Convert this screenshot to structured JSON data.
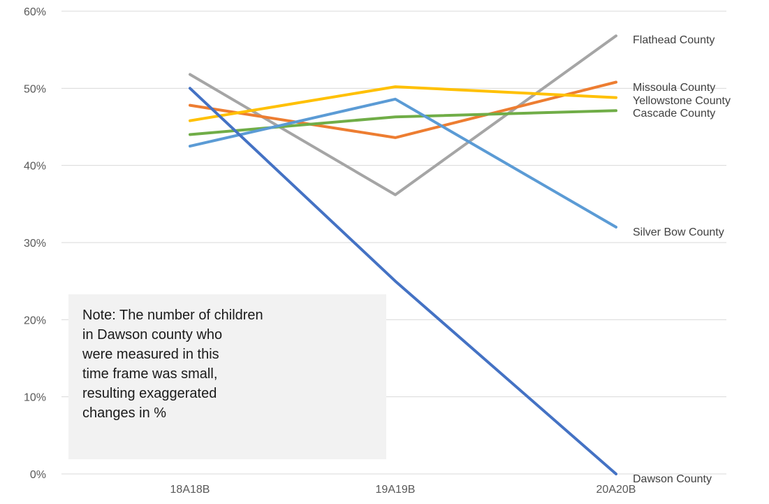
{
  "chart_data": {
    "type": "line",
    "categories": [
      "18A18B",
      "19A19B",
      "20A20B"
    ],
    "ylim": [
      0,
      60
    ],
    "yticks": [
      0,
      10,
      20,
      30,
      40,
      50,
      60
    ],
    "ytick_labels": [
      "0%",
      "10%",
      "20%",
      "30%",
      "40%",
      "50%",
      "60%"
    ],
    "grid": true,
    "series": [
      {
        "name": "Flathead County",
        "values": [
          51.8,
          36.2,
          56.8
        ],
        "color": "#a5a5a5"
      },
      {
        "name": "Missoula County",
        "values": [
          47.8,
          43.6,
          50.8
        ],
        "color": "#ed7d31"
      },
      {
        "name": "Yellowstone County",
        "values": [
          45.8,
          50.2,
          48.8
        ],
        "color": "#ffc000"
      },
      {
        "name": "Cascade County",
        "values": [
          44.0,
          46.3,
          47.1
        ],
        "color": "#70ad47"
      },
      {
        "name": "Silver Bow County",
        "values": [
          42.5,
          48.6,
          32.0
        ],
        "color": "#5b9bd5"
      },
      {
        "name": "Dawson County",
        "values": [
          50.0,
          25.0,
          0.0
        ],
        "color": "#4472c4"
      }
    ],
    "note": [
      "Note: The number of children",
      "in Dawson county who",
      "were measured in this",
      "time frame was small,",
      "resulting exaggerated",
      "changes in %"
    ]
  }
}
